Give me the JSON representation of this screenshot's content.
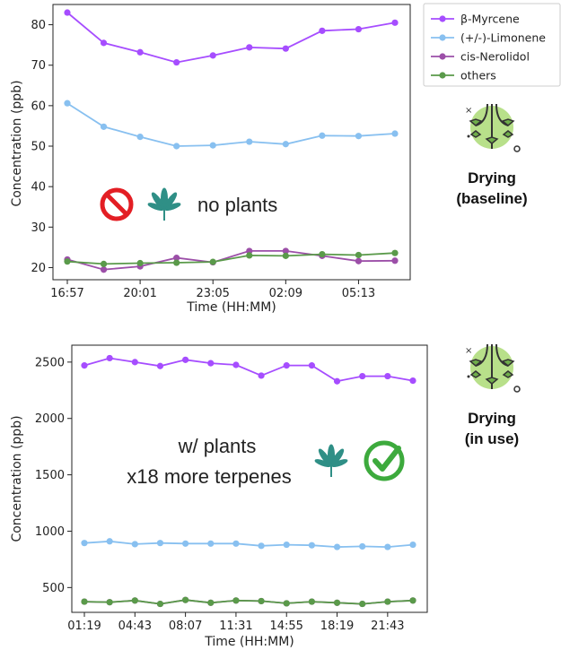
{
  "chart_data": [
    {
      "type": "line",
      "xlabel": "Time (HH:MM)",
      "ylabel": "Concentration (ppb)",
      "ylim": [
        17,
        85
      ],
      "xticks": [
        "16:57",
        "20:01",
        "23:05",
        "02:09",
        "05:13"
      ],
      "yticks": [
        20,
        30,
        40,
        50,
        60,
        70,
        80
      ],
      "grid": false,
      "legend_position": "right-outside",
      "annotation": "no plants",
      "status_label": [
        "Drying",
        "(baseline)"
      ],
      "series": [
        {
          "name": "β-Myrcene",
          "color": "#a64dff",
          "values": [
            83.0,
            75.5,
            73.2,
            70.7,
            72.4,
            74.4,
            74.1,
            78.5,
            78.9,
            80.5
          ]
        },
        {
          "name": "(+/-)-Limonene",
          "color": "#88c0f0",
          "values": [
            60.6,
            54.8,
            52.3,
            50.0,
            50.2,
            51.1,
            50.5,
            52.6,
            52.5,
            53.1
          ]
        },
        {
          "name": "cis-Nerolidol",
          "color": "#9c4fa8",
          "values": [
            22.0,
            19.5,
            20.3,
            22.4,
            21.3,
            24.1,
            24.1,
            22.9,
            21.6,
            21.7
          ]
        },
        {
          "name": "others",
          "color": "#5a9a4a",
          "values": [
            21.5,
            20.9,
            21.1,
            21.2,
            21.4,
            23.0,
            22.9,
            23.3,
            23.1,
            23.6
          ]
        }
      ]
    },
    {
      "type": "line",
      "xlabel": "Time (HH:MM)",
      "ylabel": "Concentration (ppb)",
      "ylim": [
        280,
        2650
      ],
      "xticks": [
        "01:19",
        "04:43",
        "08:07",
        "11:31",
        "14:55",
        "18:19",
        "21:43"
      ],
      "yticks": [
        500,
        1000,
        1500,
        2000,
        2500
      ],
      "grid": false,
      "annotation": [
        "w/ plants",
        "x18 more terpenes"
      ],
      "status_label": [
        "Drying",
        "(in use)"
      ],
      "series": [
        {
          "name": "β-Myrcene",
          "color": "#a64dff",
          "values": [
            2470,
            2535,
            2500,
            2465,
            2520,
            2490,
            2475,
            2380,
            2470,
            2470,
            2330,
            2375,
            2375,
            2335
          ]
        },
        {
          "name": "(+/-)-Limonene",
          "color": "#88c0f0",
          "values": [
            895,
            910,
            885,
            895,
            890,
            890,
            890,
            870,
            880,
            875,
            860,
            865,
            860,
            880
          ]
        },
        {
          "name": "cis-Nerolidol",
          "color": "#9c4fa8",
          "values": [
            375,
            370,
            385,
            355,
            390,
            365,
            385,
            380,
            360,
            375,
            365,
            355,
            375,
            385
          ]
        },
        {
          "name": "others",
          "color": "#5a9a4a",
          "values": [
            375,
            370,
            385,
            355,
            390,
            365,
            385,
            380,
            360,
            375,
            365,
            355,
            375,
            385
          ]
        }
      ]
    }
  ]
}
